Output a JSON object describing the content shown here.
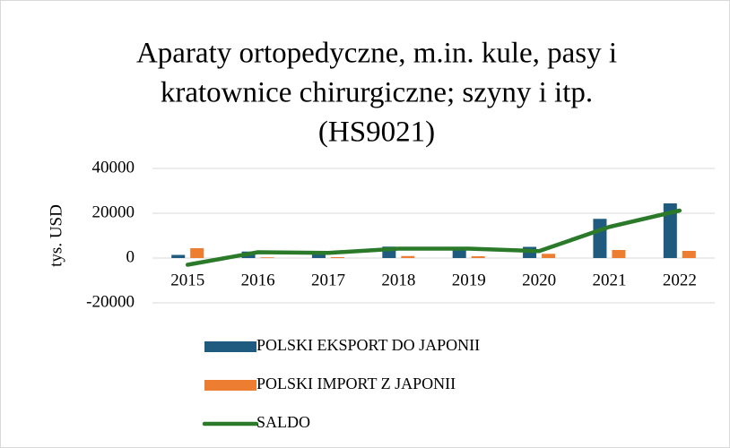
{
  "chart_data": {
    "type": "bar+line",
    "title": [
      "Aparaty ortopedyczne, m.in. kule, pasy i",
      "kratownice chirurgiczne; szyny i itp.",
      "(HS9021)"
    ],
    "y_label": "tys. USD",
    "categories": [
      "2015",
      "2016",
      "2017",
      "2018",
      "2019",
      "2020",
      "2021",
      "2022"
    ],
    "series": [
      {
        "name": "POLSKI EKSPORT DO JAPONII",
        "type": "bar",
        "color": "#1f5b7f",
        "values": [
          1400,
          2900,
          2700,
          5100,
          5000,
          5000,
          17500,
          24400
        ]
      },
      {
        "name": "POLSKI IMPORT Z JAPONII",
        "type": "bar",
        "color": "#ed7d31",
        "values": [
          4400,
          300,
          400,
          900,
          800,
          1900,
          3600,
          3200
        ]
      },
      {
        "name": "SALDO",
        "type": "line",
        "color": "#2a7a2a",
        "values": [
          -3000,
          2600,
          2300,
          4200,
          4200,
          3100,
          13900,
          21200
        ]
      }
    ],
    "ylim": [
      -20000,
      40000
    ],
    "yticks": [
      -20000,
      0,
      20000,
      40000
    ],
    "grid": true,
    "legend": "bottom"
  }
}
